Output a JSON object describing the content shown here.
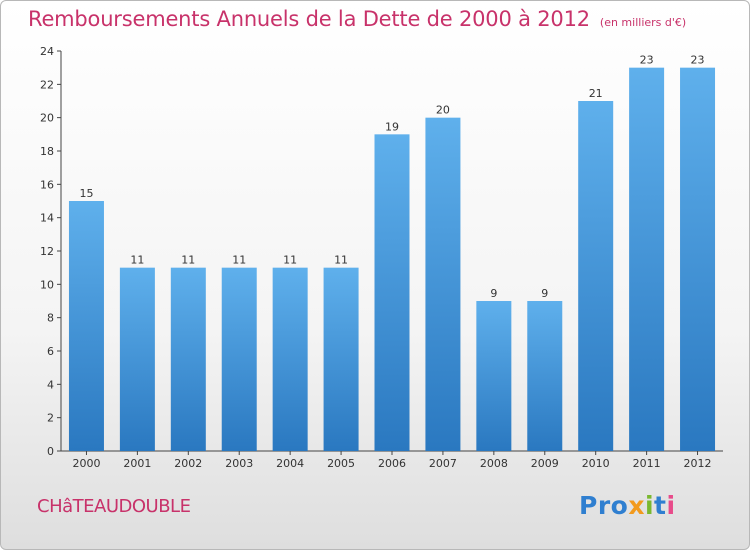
{
  "chart_data": {
    "type": "bar",
    "title": "Remboursements Annuels de la Dette de 2000 à 2012",
    "subtitle": "(en milliers d'€)",
    "categories": [
      "2000",
      "2001",
      "2002",
      "2003",
      "2004",
      "2005",
      "2006",
      "2007",
      "2008",
      "2009",
      "2010",
      "2011",
      "2012"
    ],
    "values": [
      15,
      11,
      11,
      11,
      11,
      11,
      19,
      20,
      9,
      9,
      21,
      23,
      23
    ],
    "ylim": [
      0,
      24
    ],
    "yticks": [
      0,
      2,
      4,
      6,
      8,
      10,
      12,
      14,
      16,
      18,
      20,
      22,
      24
    ],
    "xlabel": "",
    "ylabel": "",
    "grid": false,
    "bar_color": "#3a8fd8"
  },
  "footer": {
    "commune": "CHâTEAUDOUBLE",
    "logo": [
      "Pro",
      "x",
      "i",
      "t",
      "i"
    ]
  },
  "colors": {
    "title": "#c8326a",
    "bar_top": "#5fb0ec",
    "bar_bottom": "#2a78c0"
  }
}
